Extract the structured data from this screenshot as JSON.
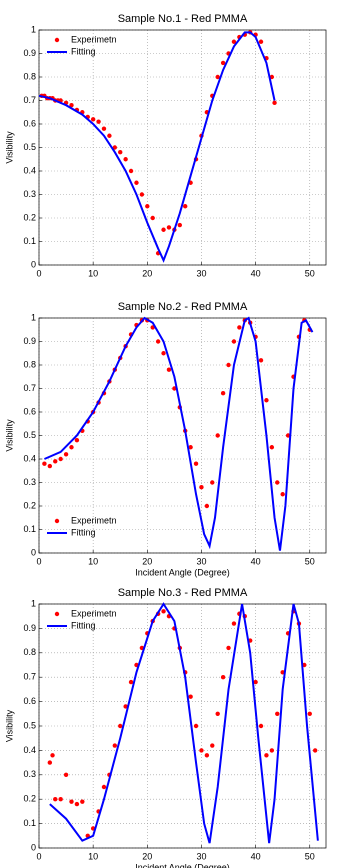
{
  "chart_data": [
    {
      "type": "scatter_line",
      "title": "Sample No.1 - Red PMMA",
      "ylabel": "Visibility",
      "xlim": [
        0,
        53
      ],
      "ylim": [
        0,
        1
      ],
      "xticks": [
        0,
        10,
        20,
        30,
        40,
        50
      ],
      "yticks": [
        0,
        0.1,
        0.2,
        0.3,
        0.4,
        0.5,
        0.6,
        0.7,
        0.8,
        0.9,
        1
      ],
      "grid": true,
      "legend": "upper left",
      "series": [
        {
          "name": "Experimetn",
          "style": "markers",
          "color": "#ff0000",
          "x": [
            0.5,
            1,
            1.5,
            2,
            2.5,
            3,
            3.5,
            4,
            5,
            6,
            7,
            8,
            9,
            10,
            11,
            12,
            13,
            14,
            15,
            16,
            17,
            18,
            19,
            20,
            21,
            22,
            23,
            24,
            25,
            26,
            27,
            28,
            29,
            30,
            31,
            32,
            33,
            34,
            35,
            36,
            37,
            38,
            39,
            40,
            41,
            42,
            43,
            43.5
          ],
          "values": [
            0.72,
            0.72,
            0.71,
            0.71,
            0.71,
            0.7,
            0.7,
            0.7,
            0.69,
            0.68,
            0.66,
            0.65,
            0.63,
            0.62,
            0.61,
            0.58,
            0.55,
            0.5,
            0.48,
            0.45,
            0.4,
            0.35,
            0.3,
            0.25,
            0.2,
            0.05,
            0.15,
            0.16,
            0.15,
            0.17,
            0.25,
            0.35,
            0.45,
            0.55,
            0.65,
            0.72,
            0.8,
            0.86,
            0.9,
            0.95,
            0.97,
            0.98,
            0.99,
            0.98,
            0.95,
            0.88,
            0.8,
            0.69
          ]
        },
        {
          "name": "Fitting",
          "style": "line",
          "color": "#0000ff",
          "x": [
            0,
            2,
            5,
            8,
            10,
            12,
            14,
            16,
            18,
            20,
            22,
            23,
            24,
            26,
            28,
            30,
            32,
            34,
            36,
            38,
            39,
            40,
            42,
            43.5
          ],
          "values": [
            0.72,
            0.71,
            0.68,
            0.64,
            0.6,
            0.55,
            0.48,
            0.4,
            0.3,
            0.18,
            0.07,
            0.02,
            0.08,
            0.22,
            0.38,
            0.54,
            0.7,
            0.83,
            0.93,
            0.99,
            0.99,
            0.97,
            0.86,
            0.7
          ]
        }
      ]
    },
    {
      "type": "scatter_line",
      "title": "Sample No.2 - Red PMMA",
      "xlabel": "Incident Angle (Degree)",
      "ylabel": "Visibility",
      "xlim": [
        0,
        53
      ],
      "ylim": [
        0,
        1
      ],
      "xticks": [
        0,
        10,
        20,
        30,
        40,
        50
      ],
      "yticks": [
        0,
        0.1,
        0.2,
        0.3,
        0.4,
        0.5,
        0.6,
        0.7,
        0.8,
        0.9,
        1
      ],
      "grid": true,
      "legend": "lower left",
      "series": [
        {
          "name": "Experimetn",
          "style": "markers",
          "color": "#ff0000",
          "x": [
            1,
            2,
            3,
            4,
            5,
            6,
            7,
            8,
            9,
            10,
            11,
            12,
            13,
            14,
            15,
            16,
            17,
            18,
            19,
            20,
            21,
            22,
            23,
            24,
            25,
            26,
            27,
            28,
            29,
            30,
            31,
            32,
            33,
            34,
            35,
            36,
            37,
            38,
            39,
            40,
            41,
            42,
            43,
            44,
            45,
            46,
            47,
            48,
            49,
            50
          ],
          "values": [
            0.38,
            0.37,
            0.39,
            0.4,
            0.42,
            0.45,
            0.48,
            0.52,
            0.56,
            0.6,
            0.64,
            0.68,
            0.73,
            0.78,
            0.83,
            0.88,
            0.93,
            0.97,
            0.99,
            0.99,
            0.96,
            0.9,
            0.85,
            0.78,
            0.7,
            0.62,
            0.52,
            0.45,
            0.38,
            0.28,
            0.2,
            0.3,
            0.5,
            0.68,
            0.8,
            0.9,
            0.96,
            0.99,
            0.98,
            0.92,
            0.82,
            0.65,
            0.45,
            0.3,
            0.25,
            0.5,
            0.75,
            0.92,
            0.99,
            0.95
          ]
        },
        {
          "name": "Fitting",
          "style": "line",
          "color": "#0000ff",
          "x": [
            1,
            4,
            7,
            10,
            13,
            16,
            18,
            19.5,
            21,
            23,
            25,
            27,
            29,
            30.5,
            31.5,
            32.5,
            34,
            36,
            38,
            38.7,
            40,
            42,
            43.5,
            44.5,
            45.5,
            47,
            48.5,
            49.3,
            50.5
          ],
          "values": [
            0.4,
            0.43,
            0.5,
            0.6,
            0.73,
            0.88,
            0.96,
            1,
            0.98,
            0.9,
            0.75,
            0.52,
            0.25,
            0.08,
            0.03,
            0.15,
            0.45,
            0.8,
            0.99,
            1,
            0.9,
            0.5,
            0.15,
            0.01,
            0.2,
            0.7,
            0.98,
            0.99,
            0.94
          ]
        }
      ]
    },
    {
      "type": "scatter_line",
      "title": "Sample No.3 - Red PMMA",
      "xlabel": "Incident Angle (Degree)",
      "ylabel": "Visibility",
      "xlim": [
        0,
        53
      ],
      "ylim": [
        0,
        1
      ],
      "xticks": [
        0,
        10,
        20,
        30,
        40,
        50
      ],
      "yticks": [
        0,
        0.1,
        0.2,
        0.3,
        0.4,
        0.5,
        0.6,
        0.7,
        0.8,
        0.9,
        1
      ],
      "grid": true,
      "legend": "upper left",
      "series": [
        {
          "name": "Experimetn",
          "style": "markers",
          "color": "#ff0000",
          "x": [
            2,
            2.5,
            3,
            4,
            5,
            6,
            7,
            8,
            9,
            10,
            11,
            12,
            13,
            14,
            15,
            16,
            17,
            18,
            19,
            20,
            21,
            22,
            23,
            24,
            25,
            26,
            27,
            28,
            29,
            30,
            31,
            32,
            33,
            34,
            35,
            36,
            37,
            38,
            39,
            40,
            41,
            42,
            43,
            44,
            45,
            46,
            47,
            48,
            49,
            50,
            51
          ],
          "values": [
            0.35,
            0.38,
            0.2,
            0.2,
            0.3,
            0.19,
            0.18,
            0.19,
            0.05,
            0.08,
            0.15,
            0.25,
            0.3,
            0.42,
            0.5,
            0.58,
            0.68,
            0.75,
            0.82,
            0.88,
            0.93,
            0.96,
            0.97,
            0.95,
            0.9,
            0.82,
            0.72,
            0.62,
            0.5,
            0.4,
            0.38,
            0.42,
            0.55,
            0.7,
            0.82,
            0.92,
            0.96,
            0.95,
            0.85,
            0.68,
            0.5,
            0.38,
            0.4,
            0.55,
            0.72,
            0.88,
            0.97,
            0.92,
            0.75,
            0.55,
            0.4
          ]
        },
        {
          "name": "Fitting",
          "style": "line",
          "color": "#0000ff",
          "x": [
            2,
            5,
            8,
            10,
            12,
            15,
            18,
            21,
            23,
            25,
            27,
            29,
            30.5,
            31.5,
            33,
            35,
            37.5,
            39,
            40.5,
            42.5,
            43.5,
            45,
            47,
            48,
            49.5,
            51.5
          ],
          "values": [
            0.18,
            0.12,
            0.03,
            0.05,
            0.2,
            0.45,
            0.72,
            0.93,
            1,
            0.93,
            0.7,
            0.35,
            0.1,
            0.02,
            0.25,
            0.65,
            1,
            0.8,
            0.45,
            0.02,
            0.2,
            0.65,
            1,
            0.92,
            0.5,
            0.03
          ]
        }
      ]
    }
  ]
}
